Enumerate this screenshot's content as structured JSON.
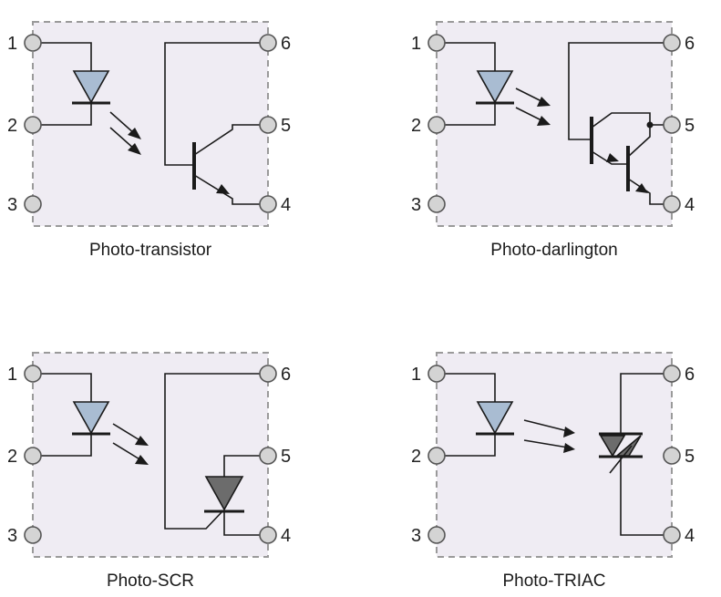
{
  "colors": {
    "led_fill": "#a9bcd2",
    "thyristor_fill": "#6c6c6c",
    "package_fill": "#efecf3",
    "package_border": "#9a9a9a",
    "pin_fill": "#d4d4d4"
  },
  "pin_numbers": [
    "1",
    "2",
    "3",
    "4",
    "5",
    "6"
  ],
  "devices": [
    {
      "caption": "Photo-transistor"
    },
    {
      "caption": "Photo-darlington"
    },
    {
      "caption": "Photo-SCR"
    },
    {
      "caption": "Photo-TRIAC"
    }
  ]
}
